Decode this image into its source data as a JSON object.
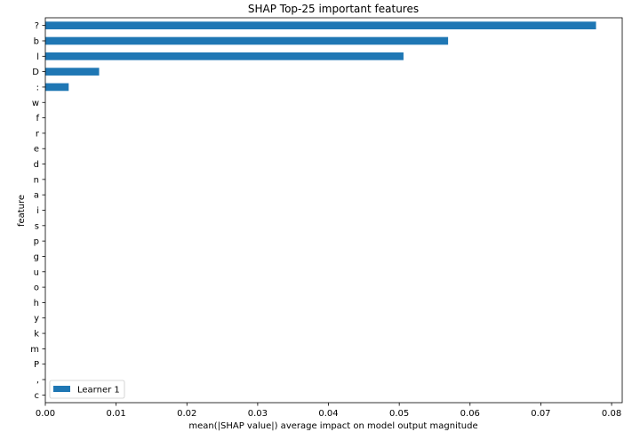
{
  "chart_data": {
    "type": "bar",
    "orientation": "horizontal",
    "title": "SHAP Top-25 important features",
    "xlabel": "mean(|SHAP value|) average impact on model output magnitude",
    "ylabel": "feature",
    "xlim": [
      0,
      0.0815
    ],
    "xticks": [
      "0.00",
      "0.01",
      "0.02",
      "0.03",
      "0.04",
      "0.05",
      "0.06",
      "0.07",
      "0.08"
    ],
    "grid": false,
    "legend_position": "lower-left",
    "categories": [
      "?",
      "b",
      "l",
      "D",
      ":",
      "w",
      "f",
      "r",
      "e",
      "d",
      "n",
      "a",
      "i",
      "s",
      "p",
      "g",
      "u",
      "o",
      "h",
      "y",
      "k",
      "m",
      "P",
      ",",
      "c"
    ],
    "series": [
      {
        "name": "Learner 1",
        "color": "#1f77b4",
        "values": [
          0.0778,
          0.0569,
          0.0506,
          0.0076,
          0.0033,
          0,
          0,
          0,
          0,
          0,
          0,
          0,
          0,
          0,
          0,
          0,
          0,
          0,
          0,
          0,
          0,
          0,
          0,
          0,
          0
        ]
      }
    ]
  }
}
